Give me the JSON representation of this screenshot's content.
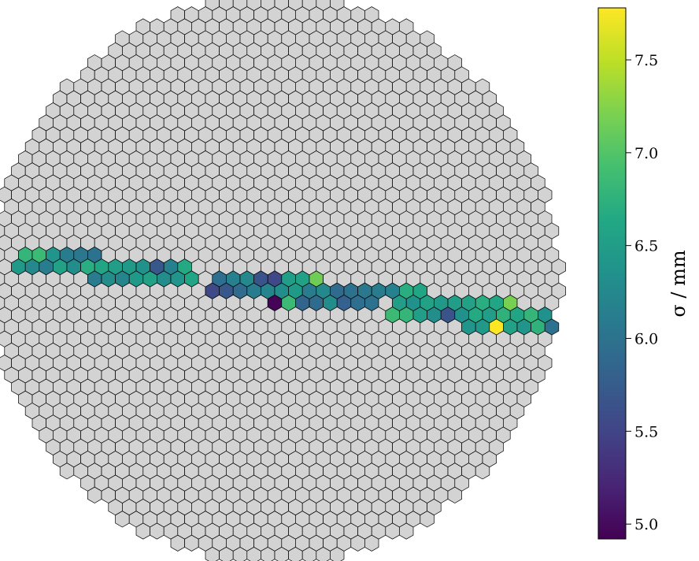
{
  "chart_data": {
    "type": "heatmap",
    "subtype": "hexagonal camera pixel map",
    "background_pixel_color": "#d3d3d3",
    "colormap": "viridis",
    "colorbar": {
      "label": "σ / mm",
      "vmin": 4.92,
      "vmax": 7.78,
      "ticks": [
        5.0,
        5.5,
        6.0,
        6.5,
        7.0,
        7.5
      ],
      "tick_labels": [
        "5.0",
        "5.5",
        "6.0",
        "6.5",
        "7.0",
        "7.5"
      ]
    },
    "camera": {
      "radius_in_pixel_pitches": 20.6,
      "center_row_index": 14
    },
    "highlighted_pixels": [
      {
        "r": 12,
        "c": -18,
        "v": 6.8
      },
      {
        "r": 12,
        "c": -17,
        "v": 6.85
      },
      {
        "r": 12,
        "c": -16,
        "v": 6.4
      },
      {
        "r": 12,
        "c": -15,
        "v": 6.1
      },
      {
        "r": 12,
        "c": -14,
        "v": 6.05
      },
      {
        "r": 12,
        "c": -13,
        "v": 6.0
      },
      {
        "r": 13,
        "c": -19,
        "v": 6.45
      },
      {
        "r": 13,
        "c": -18,
        "v": 6.25
      },
      {
        "r": 13,
        "c": -17,
        "v": 6.1
      },
      {
        "r": 13,
        "c": -16,
        "v": 6.55
      },
      {
        "r": 13,
        "c": -15,
        "v": 6.3
      },
      {
        "r": 13,
        "c": -14,
        "v": 6.7
      },
      {
        "r": 13,
        "c": -13,
        "v": 6.6
      },
      {
        "r": 13,
        "c": -12,
        "v": 6.5
      },
      {
        "r": 13,
        "c": -11,
        "v": 6.45
      },
      {
        "r": 13,
        "c": -10,
        "v": 6.35
      },
      {
        "r": 13,
        "c": -9,
        "v": 5.7
      },
      {
        "r": 13,
        "c": -8,
        "v": 6.15
      },
      {
        "r": 13,
        "c": -7,
        "v": 6.65
      },
      {
        "r": 14,
        "c": -13,
        "v": 6.1
      },
      {
        "r": 14,
        "c": -12,
        "v": 6.3
      },
      {
        "r": 14,
        "c": -11,
        "v": 6.2
      },
      {
        "r": 14,
        "c": -10,
        "v": 6.45
      },
      {
        "r": 14,
        "c": -9,
        "v": 6.55
      },
      {
        "r": 14,
        "c": -8,
        "v": 6.3
      },
      {
        "r": 14,
        "c": -7,
        "v": 6.4
      },
      {
        "r": 14,
        "c": -6,
        "v": 6.6
      },
      {
        "r": 14,
        "c": -4,
        "v": 5.95
      },
      {
        "r": 14,
        "c": -3,
        "v": 6.15
      },
      {
        "r": 14,
        "c": -2,
        "v": 6.25
      },
      {
        "r": 14,
        "c": -1,
        "v": 5.65
      },
      {
        "r": 14,
        "c": 0,
        "v": 5.55
      },
      {
        "r": 14,
        "c": 1,
        "v": 6.5
      },
      {
        "r": 14,
        "c": 2,
        "v": 6.55
      },
      {
        "r": 14,
        "c": 3,
        "v": 7.15
      },
      {
        "r": 15,
        "c": -5,
        "v": 5.55
      },
      {
        "r": 15,
        "c": -4,
        "v": 5.7
      },
      {
        "r": 15,
        "c": -3,
        "v": 5.9
      },
      {
        "r": 15,
        "c": -2,
        "v": 6.1
      },
      {
        "r": 15,
        "c": -1,
        "v": 6.2
      },
      {
        "r": 15,
        "c": 0,
        "v": 6.3
      },
      {
        "r": 15,
        "c": 1,
        "v": 6.45
      },
      {
        "r": 15,
        "c": 2,
        "v": 6.1
      },
      {
        "r": 15,
        "c": 3,
        "v": 6.25
      },
      {
        "r": 15,
        "c": 4,
        "v": 5.9
      },
      {
        "r": 15,
        "c": 5,
        "v": 6.0
      },
      {
        "r": 15,
        "c": 6,
        "v": 6.05
      },
      {
        "r": 15,
        "c": 7,
        "v": 6.1
      },
      {
        "r": 15,
        "c": 8,
        "v": 6.15
      },
      {
        "r": 15,
        "c": 9,
        "v": 6.7
      },
      {
        "r": 15,
        "c": 10,
        "v": 6.6
      },
      {
        "r": 16,
        "c": 0,
        "v": 4.95
      },
      {
        "r": 16,
        "c": 1,
        "v": 6.85
      },
      {
        "r": 16,
        "c": 2,
        "v": 5.85
      },
      {
        "r": 16,
        "c": 3,
        "v": 5.9
      },
      {
        "r": 16,
        "c": 4,
        "v": 6.3
      },
      {
        "r": 16,
        "c": 5,
        "v": 5.8
      },
      {
        "r": 16,
        "c": 6,
        "v": 5.95
      },
      {
        "r": 16,
        "c": 7,
        "v": 6.0
      },
      {
        "r": 16,
        "c": 9,
        "v": 6.5
      },
      {
        "r": 16,
        "c": 10,
        "v": 6.35
      },
      {
        "r": 16,
        "c": 11,
        "v": 6.55
      },
      {
        "r": 16,
        "c": 12,
        "v": 6.45
      },
      {
        "r": 16,
        "c": 13,
        "v": 6.5
      },
      {
        "r": 16,
        "c": 14,
        "v": 6.55
      },
      {
        "r": 16,
        "c": 15,
        "v": 6.7
      },
      {
        "r": 16,
        "c": 16,
        "v": 6.6
      },
      {
        "r": 16,
        "c": 17,
        "v": 7.2
      },
      {
        "r": 17,
        "c": 8,
        "v": 6.85
      },
      {
        "r": 17,
        "c": 9,
        "v": 6.8
      },
      {
        "r": 17,
        "c": 10,
        "v": 6.5
      },
      {
        "r": 17,
        "c": 11,
        "v": 6.3
      },
      {
        "r": 17,
        "c": 12,
        "v": 5.65
      },
      {
        "r": 17,
        "c": 13,
        "v": 6.35
      },
      {
        "r": 17,
        "c": 14,
        "v": 6.65
      },
      {
        "r": 17,
        "c": 15,
        "v": 6.5
      },
      {
        "r": 17,
        "c": 16,
        "v": 6.75
      },
      {
        "r": 17,
        "c": 17,
        "v": 6.6
      },
      {
        "r": 17,
        "c": 18,
        "v": 6.8
      },
      {
        "r": 17,
        "c": 19,
        "v": 6.35
      },
      {
        "r": 17,
        "c": 20,
        "v": 6.15
      },
      {
        "r": 17,
        "c": 21,
        "v": 6.0
      },
      {
        "r": 18,
        "c": 14,
        "v": 6.4
      },
      {
        "r": 18,
        "c": 15,
        "v": 6.45
      },
      {
        "r": 18,
        "c": 16,
        "v": 7.8
      },
      {
        "r": 18,
        "c": 17,
        "v": 6.55
      },
      {
        "r": 18,
        "c": 18,
        "v": 6.4
      },
      {
        "r": 18,
        "c": 19,
        "v": 6.75
      },
      {
        "r": 18,
        "c": 20,
        "v": 6.0
      },
      {
        "r": 19,
        "c": 20,
        "v": 6.9
      }
    ]
  }
}
